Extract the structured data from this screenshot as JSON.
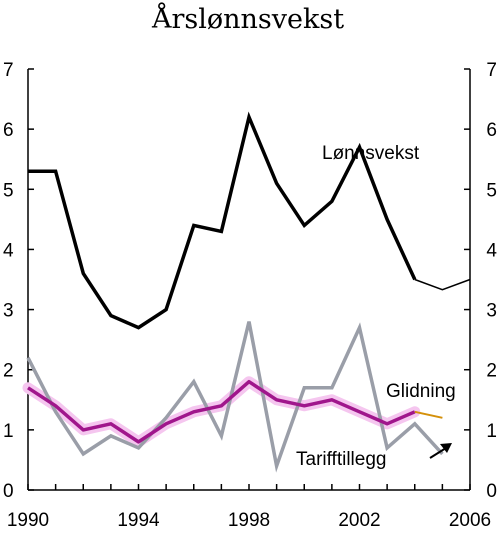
{
  "chart_data": {
    "type": "line",
    "title": "Årslønnsvekst",
    "xlabel": "",
    "ylabel": "",
    "xlim": [
      1990,
      2006
    ],
    "ylim": [
      0,
      7
    ],
    "x_ticks": [
      1990,
      1994,
      1998,
      2002,
      2006
    ],
    "y_ticks": [
      0,
      1,
      2,
      3,
      4,
      5,
      6,
      7
    ],
    "grid": false,
    "colors": {
      "lonnsvekst": "#000000",
      "tarifftillegg": "#9a9ea8",
      "glidning": "#a0168c",
      "glidning_band": "#f5c6ef",
      "glidning_projection": "#d4900a"
    },
    "series": [
      {
        "name": "Lønnsvekst",
        "x": [
          1990,
          1991,
          1992,
          1993,
          1994,
          1995,
          1996,
          1997,
          1998,
          1999,
          2000,
          2001,
          2002,
          2003,
          2004
        ],
        "values": [
          5.3,
          5.3,
          3.6,
          2.9,
          2.7,
          3.0,
          4.4,
          4.3,
          6.2,
          5.1,
          4.4,
          4.8,
          5.7,
          4.5,
          3.5
        ],
        "projection": {
          "x": [
            2004,
            2005,
            2006
          ],
          "values": [
            3.5,
            3.33,
            3.5
          ]
        }
      },
      {
        "name": "Tarifftillegg",
        "x": [
          1990,
          1991,
          1992,
          1993,
          1994,
          1995,
          1996,
          1997,
          1998,
          1999,
          2000,
          2001,
          2002,
          2003,
          2004,
          2005
        ],
        "values": [
          2.2,
          1.3,
          0.6,
          0.9,
          0.7,
          1.2,
          1.8,
          0.9,
          2.8,
          0.4,
          1.7,
          1.7,
          2.7,
          0.7,
          1.1,
          0.6
        ]
      },
      {
        "name": "Glidning",
        "x": [
          1990,
          1991,
          1992,
          1993,
          1994,
          1995,
          1996,
          1997,
          1998,
          1999,
          2000,
          2001,
          2002,
          2003,
          2004
        ],
        "values": [
          1.7,
          1.4,
          1.0,
          1.1,
          0.8,
          1.1,
          1.3,
          1.4,
          1.8,
          1.5,
          1.4,
          1.5,
          1.3,
          1.1,
          1.3
        ],
        "projection": {
          "x": [
            2004,
            2005
          ],
          "values": [
            1.3,
            1.2
          ]
        }
      }
    ],
    "annotations": [
      {
        "text": "Lønnsvekst",
        "series": "Lønnsvekst"
      },
      {
        "text": "Glidning",
        "series": "Glidning"
      },
      {
        "text": "Tarifftillegg",
        "series": "Tarifftillegg",
        "arrow": true
      }
    ]
  }
}
